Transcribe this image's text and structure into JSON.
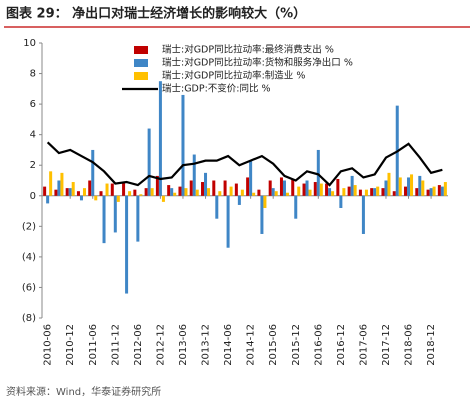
{
  "chart_data": {
    "type": "bar",
    "title": "图表 29：  净出口对瑞士经济增长的影响较大（%）",
    "source": "资料来源：Wind，华泰证券研究所",
    "categories": [
      "2010-06",
      null,
      "2010-12",
      null,
      "2011-06",
      null,
      "2011-12",
      null,
      "2012-06",
      null,
      "2012-12",
      null,
      "2013-06",
      null,
      "2013-12",
      null,
      "2014-06",
      null,
      "2014-12",
      null,
      "2015-06",
      null,
      "2015-12",
      null,
      "2016-06",
      null,
      "2016-12",
      null,
      "2017-06",
      null,
      "2017-12",
      null,
      "2018-06",
      null,
      "2018-12",
      null
    ],
    "series": [
      {
        "name": "瑞士:对GDP同比拉动率:最终消费支出 %",
        "type": "bar",
        "color": "#c00000",
        "values": [
          0.6,
          0.4,
          0.5,
          0.3,
          1.0,
          0.3,
          0.8,
          0.9,
          0.4,
          0.5,
          1.3,
          0.7,
          0.6,
          1.0,
          0.9,
          1.0,
          1.0,
          0.8,
          1.2,
          0.4,
          1.0,
          1.2,
          1.1,
          0.8,
          0.9,
          0.8,
          1.1,
          0.6,
          0.4,
          0.5,
          0.5,
          0.3,
          0.6,
          0.5,
          0.4,
          0.7
        ]
      },
      {
        "name": "瑞士:对GDP同比拉动率:货物和服务净出口 %",
        "type": "bar",
        "color": "#3f86c6",
        "values": [
          -0.5,
          1.0,
          0.5,
          -0.3,
          3.0,
          -3.1,
          -2.4,
          -6.4,
          -3.0,
          4.4,
          7.5,
          0.5,
          6.6,
          2.7,
          1.5,
          -1.5,
          -3.4,
          -0.6,
          2.3,
          -2.5,
          0.5,
          1.0,
          -1.5,
          1.0,
          3.0,
          0.5,
          -0.8,
          1.3,
          -2.5,
          0.5,
          1.0,
          5.9,
          1.2,
          1.3,
          0.5,
          0.6
        ]
      },
      {
        "name": "瑞士:对GDP同比拉动率:制造业 %",
        "type": "bar",
        "color": "#ffc000",
        "values": [
          1.6,
          1.5,
          0.9,
          0.5,
          -0.3,
          0.8,
          -0.4,
          0.3,
          0.1,
          0.5,
          -0.4,
          0.2,
          0.5,
          0.4,
          0.5,
          0.3,
          0.6,
          0.4,
          0.2,
          -0.8,
          0.3,
          0.2,
          0.6,
          0.4,
          0.8,
          0.3,
          0.5,
          0.7,
          0.4,
          0.6,
          1.5,
          1.2,
          1.4,
          1.0,
          0.6,
          0.9
        ]
      },
      {
        "name": "瑞士:GDP:不变价:同比 %",
        "type": "line",
        "color": "#000000",
        "values": [
          3.5,
          2.8,
          3.0,
          2.6,
          2.2,
          1.6,
          0.8,
          0.9,
          0.7,
          1.3,
          1.1,
          1.2,
          2.0,
          2.1,
          2.3,
          2.3,
          2.6,
          2.0,
          2.3,
          2.6,
          2.1,
          1.3,
          1.0,
          1.6,
          1.4,
          0.7,
          1.6,
          1.8,
          1.2,
          1.4,
          2.5,
          2.9,
          3.4,
          2.5,
          1.5,
          1.7
        ]
      }
    ],
    "ylim": [
      -8,
      10
    ],
    "yticks": [
      {
        "value": -8,
        "label": "(8)"
      },
      {
        "value": -6,
        "label": "(6)"
      },
      {
        "value": -4,
        "label": "(4)"
      },
      {
        "value": -2,
        "label": "(2)"
      },
      0,
      2,
      4,
      6,
      8,
      10
    ]
  }
}
